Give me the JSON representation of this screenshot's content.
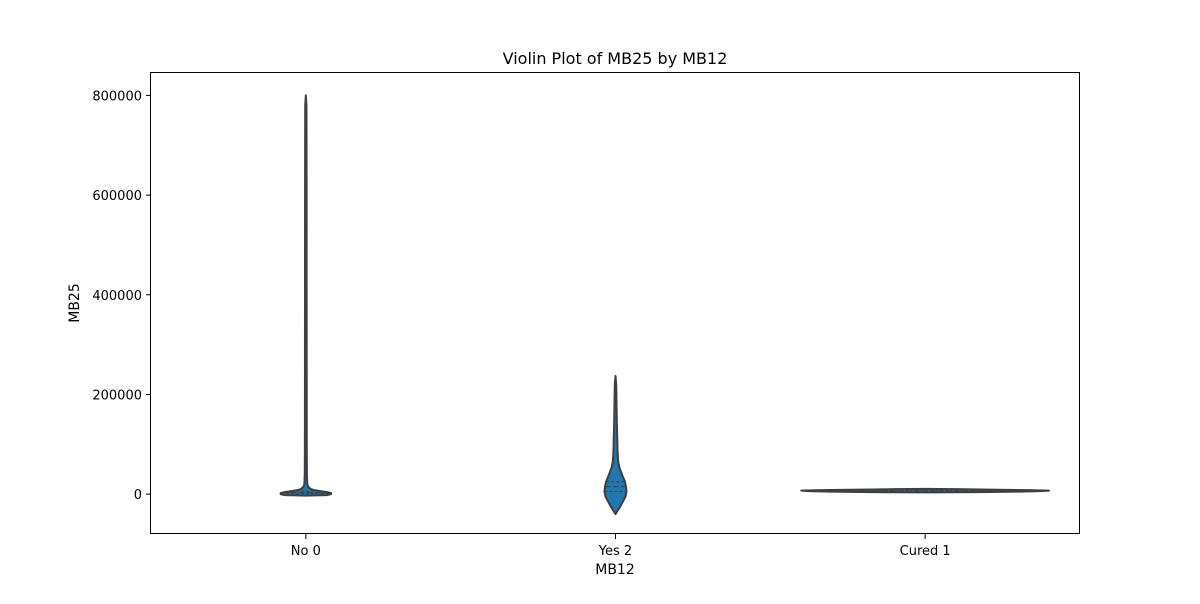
{
  "chart_data": {
    "type": "violin",
    "title": "Violin Plot of MB25 by MB12",
    "xlabel": "MB12",
    "ylabel": "MB25",
    "categories": [
      "No 0",
      "Yes 2",
      "Cured 1"
    ],
    "ylim": [
      -80000,
      845000
    ],
    "yticks": [
      0,
      200000,
      400000,
      600000,
      800000
    ],
    "ytick_labels": [
      "0",
      "200000",
      "400000",
      "600000",
      "800000"
    ],
    "grid": false,
    "inner": "quartile",
    "fill_color": "#1f77b4",
    "edge_color": "#3f3f3f",
    "violins": [
      {
        "category": "No 0",
        "q1": 1000,
        "median": 3000,
        "q3": 6000,
        "profile": [
          [
            -3000,
            0
          ],
          [
            -2000,
            20000
          ],
          [
            0,
            24000
          ],
          [
            2000,
            24000
          ],
          [
            4000,
            20000
          ],
          [
            6000,
            14000
          ],
          [
            8000,
            8000
          ],
          [
            10000,
            5000
          ],
          [
            14000,
            2500
          ],
          [
            20000,
            1400
          ],
          [
            40000,
            1000
          ],
          [
            100000,
            900
          ],
          [
            200000,
            850
          ],
          [
            400000,
            800
          ],
          [
            600000,
            750
          ],
          [
            780000,
            600
          ],
          [
            800000,
            0
          ]
        ]
      },
      {
        "category": "Yes 2",
        "q1": 5000,
        "median": 15000,
        "q3": 25000,
        "profile": [
          [
            -40000,
            0
          ],
          [
            -35000,
            1500
          ],
          [
            -25000,
            4500
          ],
          [
            -15000,
            7000
          ],
          [
            -5000,
            9500
          ],
          [
            5000,
            10500
          ],
          [
            15000,
            10000
          ],
          [
            25000,
            9000
          ],
          [
            35000,
            7000
          ],
          [
            45000,
            5200
          ],
          [
            55000,
            3500
          ],
          [
            65000,
            2600
          ],
          [
            75000,
            2200
          ],
          [
            90000,
            1900
          ],
          [
            110000,
            1700
          ],
          [
            140000,
            1300
          ],
          [
            180000,
            1000
          ],
          [
            220000,
            700
          ],
          [
            237000,
            0
          ]
        ]
      },
      {
        "category": "Cured 1",
        "q1": 4000,
        "median": 6000,
        "q3": 8000,
        "profile": [
          [
            3500,
            0
          ],
          [
            4000,
            52000
          ],
          [
            5000,
            90000
          ],
          [
            6000,
            110000
          ],
          [
            7000,
            118000
          ],
          [
            8000,
            100000
          ],
          [
            9000,
            60000
          ],
          [
            10000,
            30000
          ],
          [
            10500,
            0
          ]
        ]
      }
    ]
  }
}
